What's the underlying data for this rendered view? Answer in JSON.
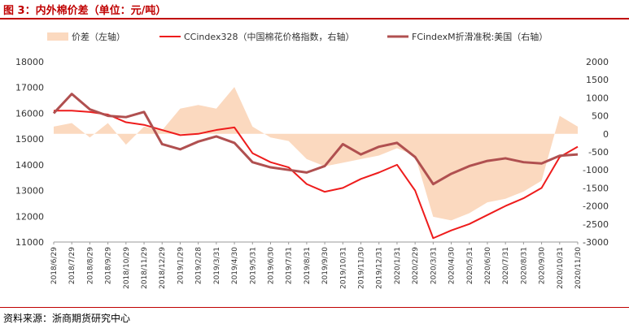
{
  "title": "图 3：内外棉价差（单位：元/吨）",
  "source": "资料来源：浙商期货研究中心",
  "colors": {
    "spread": "#fbd9bf",
    "cc": "#ee1c1c",
    "fc": "#b05050",
    "title": "#c00000"
  },
  "chart_data": {
    "type": "line",
    "title": "",
    "legend_position": "top",
    "grid": false,
    "left_axis": {
      "ylim": [
        11000,
        18000
      ],
      "ticks": [
        11000,
        12000,
        13000,
        14000,
        15000,
        16000,
        17000,
        18000
      ]
    },
    "right_axis": {
      "ylim": [
        -3000,
        2000
      ],
      "ticks": [
        -3000,
        -2500,
        -2000,
        -1500,
        -1000,
        -500,
        0,
        500,
        1000,
        1500,
        2000
      ]
    },
    "x_ticks": [
      "2018/6/29",
      "2018/7/29",
      "2018/8/29",
      "2018/9/29",
      "2018/10/29",
      "2018/11/29",
      "2018/12/29",
      "2019/1/29",
      "2019/2/28",
      "2019/3/31",
      "2019/4/30",
      "2019/5/31",
      "2019/6/30",
      "2019/7/31",
      "2019/8/31",
      "2019/9/30",
      "2019/10/31",
      "2019/11/30",
      "2019/12/31",
      "2020/1/31",
      "2020/2/29",
      "2020/3/31",
      "2020/4/30",
      "2020/5/31",
      "2020/6/30",
      "2020/7/31",
      "2020/8/31",
      "2020/9/30",
      "2020/10/31",
      "2020/11/30"
    ],
    "series": [
      {
        "name": "价差（左轴）",
        "type": "area",
        "axis": "right",
        "x": [
          "2018/6/29",
          "2018/7/29",
          "2018/8/29",
          "2018/9/29",
          "2018/10/29",
          "2018/11/29",
          "2018/12/29",
          "2019/1/29",
          "2019/2/28",
          "2019/3/31",
          "2019/4/30",
          "2019/5/31",
          "2019/6/30",
          "2019/7/31",
          "2019/8/31",
          "2019/9/30",
          "2019/10/31",
          "2019/11/30",
          "2019/12/31",
          "2020/1/31",
          "2020/2/29",
          "2020/3/31",
          "2020/4/30",
          "2020/5/31",
          "2020/6/30",
          "2020/7/31",
          "2020/8/31",
          "2020/9/30",
          "2020/10/31",
          "2020/11/30"
        ],
        "values": [
          200,
          300,
          -100,
          300,
          -300,
          200,
          100,
          700,
          800,
          700,
          1300,
          200,
          -100,
          -200,
          -700,
          -900,
          -800,
          -700,
          -600,
          -400,
          -600,
          -2300,
          -2400,
          -2200,
          -1900,
          -1800,
          -1600,
          -1300,
          500,
          200
        ]
      },
      {
        "name": "CCindex328（中国棉花价格指数，右轴）",
        "type": "line",
        "axis": "left",
        "x": [
          "2018/6/29",
          "2018/7/29",
          "2018/8/29",
          "2018/9/29",
          "2018/10/29",
          "2018/11/29",
          "2018/12/29",
          "2019/1/29",
          "2019/2/28",
          "2019/3/31",
          "2019/4/30",
          "2019/5/31",
          "2019/6/30",
          "2019/7/31",
          "2019/8/31",
          "2019/9/30",
          "2019/10/31",
          "2019/11/30",
          "2019/12/31",
          "2020/1/31",
          "2020/2/29",
          "2020/3/31",
          "2020/4/30",
          "2020/5/31",
          "2020/6/30",
          "2020/7/31",
          "2020/8/31",
          "2020/9/30",
          "2020/10/31",
          "2020/11/30"
        ],
        "values": [
          16100,
          16100,
          16050,
          15950,
          15650,
          15550,
          15350,
          15150,
          15200,
          15350,
          15450,
          14450,
          14100,
          13900,
          13250,
          12950,
          13100,
          13450,
          13700,
          14000,
          13000,
          11150,
          11450,
          11700,
          12050,
          12400,
          12700,
          13100,
          14300,
          14700
        ]
      },
      {
        "name": "FCindexM折滑准税:美国（右轴）",
        "type": "line",
        "axis": "left",
        "x": [
          "2018/6/29",
          "2018/7/29",
          "2018/8/29",
          "2018/9/29",
          "2018/10/29",
          "2018/11/29",
          "2018/12/29",
          "2019/1/29",
          "2019/2/28",
          "2019/3/31",
          "2019/4/30",
          "2019/5/31",
          "2019/6/30",
          "2019/7/31",
          "2019/8/31",
          "2019/9/30",
          "2019/10/31",
          "2019/11/30",
          "2019/12/31",
          "2020/1/31",
          "2020/2/29",
          "2020/3/31",
          "2020/4/30",
          "2020/5/31",
          "2020/6/30",
          "2020/7/31",
          "2020/8/31",
          "2020/9/30",
          "2020/10/31",
          "2020/11/30"
        ],
        "values": [
          16000,
          16750,
          16150,
          15900,
          15850,
          16050,
          14800,
          14600,
          14900,
          15100,
          14850,
          14100,
          13900,
          13800,
          13700,
          13950,
          14800,
          14400,
          14700,
          14850,
          14300,
          13250,
          13650,
          13950,
          14150,
          14250,
          14100,
          14050,
          14350,
          14400
        ]
      }
    ]
  }
}
